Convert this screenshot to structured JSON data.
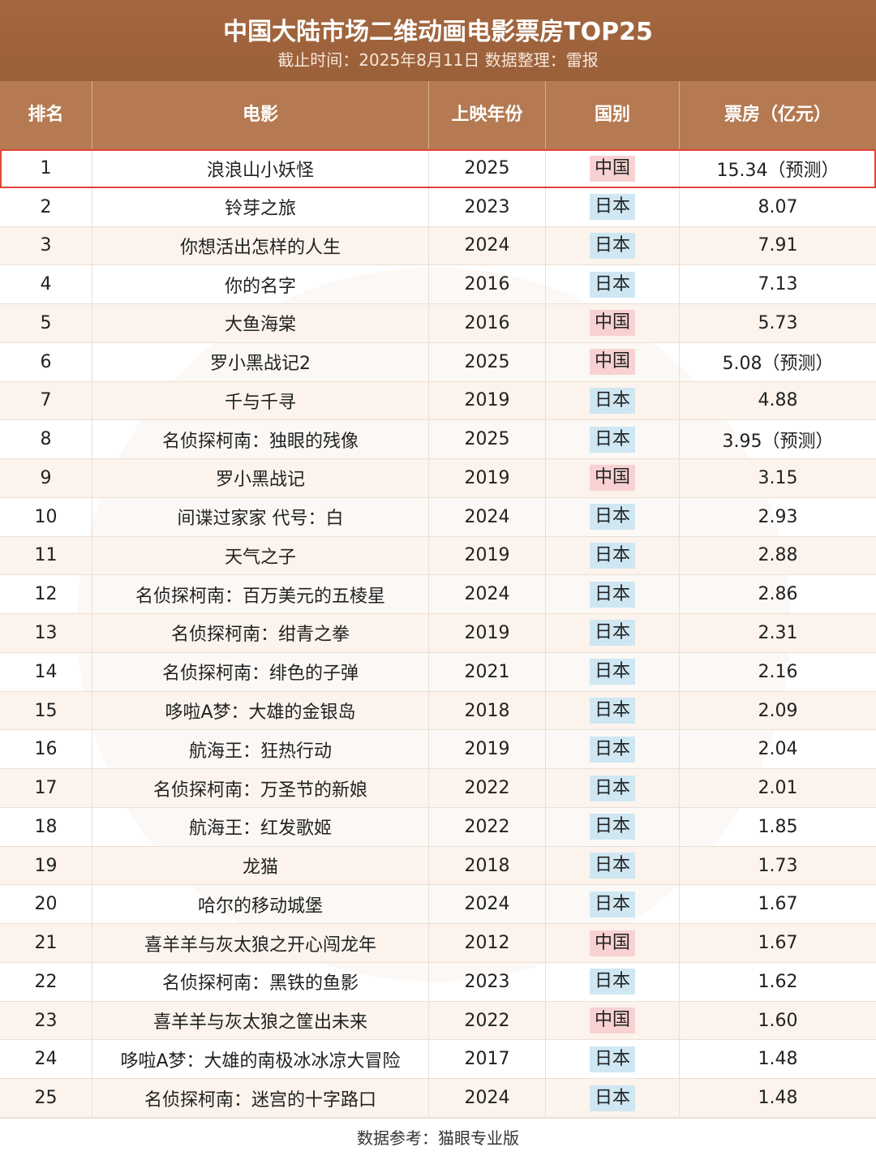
{
  "header": {
    "title": "中国大陆市场二维动画电影票房TOP25",
    "subtitle": "截止时间：2025年8月11日 数据整理：雷报"
  },
  "table": {
    "columns": [
      "排名",
      "电影",
      "上映年份",
      "国别",
      "票房（亿元）"
    ],
    "rows": [
      [
        "1",
        "浪浪山小妖怪",
        "2025",
        "中国",
        "15.34（预测）"
      ],
      [
        "2",
        "铃芽之旅",
        "2023",
        "日本",
        "8.07"
      ],
      [
        "3",
        "你想活出怎样的人生",
        "2024",
        "日本",
        "7.91"
      ],
      [
        "4",
        "你的名字",
        "2016",
        "日本",
        "7.13"
      ],
      [
        "5",
        "大鱼海棠",
        "2016",
        "中国",
        "5.73"
      ],
      [
        "6",
        "罗小黑战记2",
        "2025",
        "中国",
        "5.08（预测）"
      ],
      [
        "7",
        "千与千寻",
        "2019",
        "日本",
        "4.88"
      ],
      [
        "8",
        "名侦探柯南：独眼的残像",
        "2025",
        "日本",
        "3.95（预测）"
      ],
      [
        "9",
        "罗小黑战记",
        "2019",
        "中国",
        "3.15"
      ],
      [
        "10",
        "间谍过家家 代号：白",
        "2024",
        "日本",
        "2.93"
      ],
      [
        "11",
        "天气之子",
        "2019",
        "日本",
        "2.88"
      ],
      [
        "12",
        "名侦探柯南：百万美元的五棱星",
        "2024",
        "日本",
        "2.86"
      ],
      [
        "13",
        "名侦探柯南：绀青之拳",
        "2019",
        "日本",
        "2.31"
      ],
      [
        "14",
        "名侦探柯南：绯色的子弹",
        "2021",
        "日本",
        "2.16"
      ],
      [
        "15",
        "哆啦A梦：大雄的金银岛",
        "2018",
        "日本",
        "2.09"
      ],
      [
        "16",
        "航海王：狂热行动",
        "2019",
        "日本",
        "2.04"
      ],
      [
        "17",
        "名侦探柯南：万圣节的新娘",
        "2022",
        "日本",
        "2.01"
      ],
      [
        "18",
        "航海王：红发歌姬",
        "2022",
        "日本",
        "1.85"
      ],
      [
        "19",
        "龙猫",
        "2018",
        "日本",
        "1.73"
      ],
      [
        "20",
        "哈尔的移动城堡",
        "2024",
        "日本",
        "1.67"
      ],
      [
        "21",
        "喜羊羊与灰太狼之开心闯龙年",
        "2012",
        "中国",
        "1.67"
      ],
      [
        "22",
        "名侦探柯南：黑铁的鱼影",
        "2023",
        "日本",
        "1.62"
      ],
      [
        "23",
        "喜羊羊与灰太狼之筐出未来",
        "2022",
        "中国",
        "1.60"
      ],
      [
        "24",
        "哆啦A梦：大雄的南极冰冰凉大冒险",
        "2017",
        "日本",
        "1.48"
      ],
      [
        "25",
        "名侦探柯南：迷宫的十字路口",
        "2024",
        "日本",
        "1.48"
      ]
    ]
  },
  "footer": "数据参考：猫眼专业版"
}
